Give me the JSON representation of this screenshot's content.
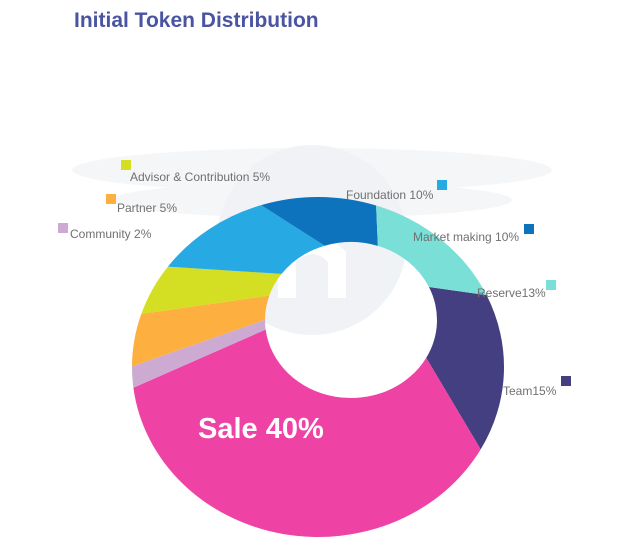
{
  "title": "Initial Token Distribution",
  "watermark": {
    "icon": "n-logo-wings-icon",
    "glyph": "n"
  },
  "chart_data": {
    "type": "pie",
    "style": "donut",
    "title": "Initial Token Distribution",
    "slices": [
      {
        "name": "Sale",
        "value": 40,
        "label": "Sale 40%",
        "color": "#ef42a5"
      },
      {
        "name": "Community",
        "value": 2,
        "label": "Community 2%",
        "color": "#ccaad2"
      },
      {
        "name": "Partner",
        "value": 5,
        "label": "Partner 5%",
        "color": "#fdaf3f"
      },
      {
        "name": "Advisor & Contribution",
        "value": 5,
        "label": "Advisor & Contribution 5%",
        "color": "#d4df24"
      },
      {
        "name": "Foundation",
        "value": 10,
        "label": "Foundation 10%",
        "color": "#27a9e3"
      },
      {
        "name": "Market making",
        "value": 10,
        "label": "Market making 10%",
        "color": "#0d73bc"
      },
      {
        "name": "Reserve",
        "value": 13,
        "label": "Reserve13%",
        "color": "#7adfd6"
      },
      {
        "name": "Team",
        "value": 15,
        "label": "Team15%",
        "color": "#443f80"
      }
    ]
  }
}
